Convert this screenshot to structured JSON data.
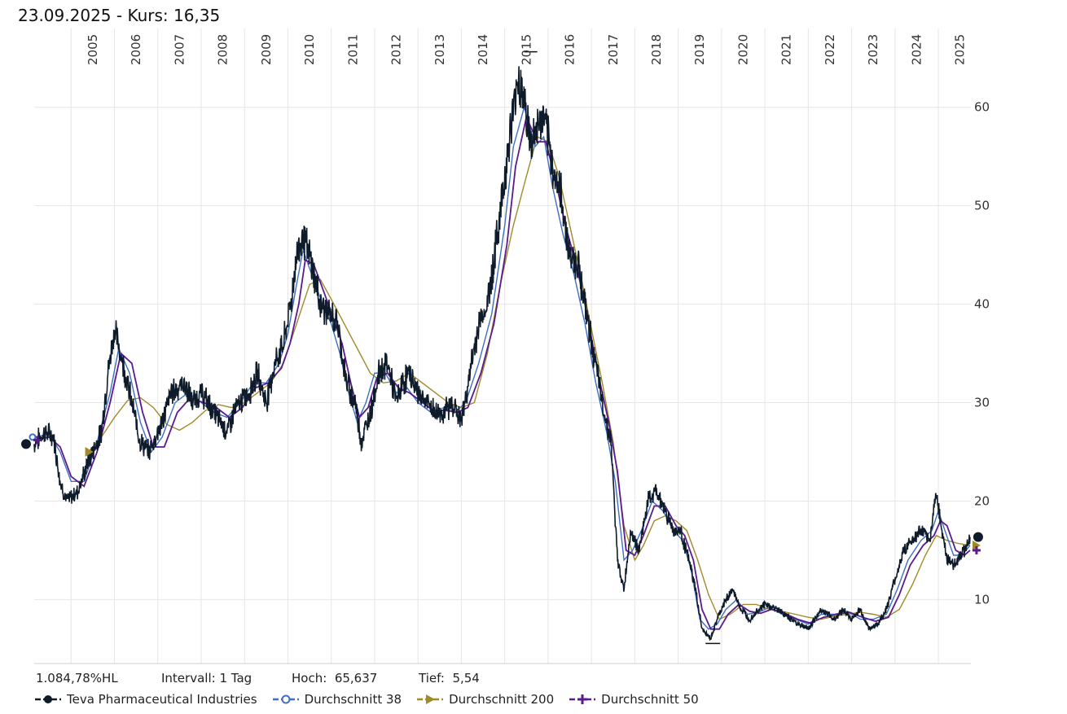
{
  "header": {
    "date": "23.09.2025",
    "separator": " - Kurs: ",
    "price": "16,35"
  },
  "stats": {
    "performance": "1.084,78%HL",
    "interval_label": "Intervall:",
    "interval_value": "1 Tag",
    "high_label": "Hoch:",
    "high_value": "65,637",
    "low_label": "Tief:",
    "low_value": "5,54"
  },
  "legend": [
    {
      "label": "Teva Pharmaceutical Industries",
      "color": "#0d1b2a",
      "marker": "circle"
    },
    {
      "label": "Durchschnitt 38",
      "color": "#3d6fc4",
      "marker": "diamond"
    },
    {
      "label": "Durchschnitt 200",
      "color": "#a08a2a",
      "marker": "triangle"
    },
    {
      "label": "Durchschnitt 50",
      "color": "#5b1a8e",
      "marker": "plus"
    }
  ],
  "chart_data": {
    "type": "line",
    "title": "Teva Pharmaceutical Industries",
    "x_domain": [
      2004.15,
      2025.75
    ],
    "ylim": [
      3.5,
      68
    ],
    "x_ticks": [
      "2005",
      "2006",
      "2007",
      "2008",
      "2009",
      "2010",
      "2011",
      "2012",
      "2013",
      "2014",
      "2015",
      "2016",
      "2017",
      "2018",
      "2019",
      "2020",
      "2021",
      "2022",
      "2023",
      "2024",
      "2025"
    ],
    "y_ticks": [
      10,
      20,
      30,
      40,
      50,
      60
    ],
    "grid": true,
    "annotations": {
      "high": 65.637,
      "low": 5.54,
      "last": 16.35
    },
    "series": [
      {
        "name": "Teva Pharmaceutical Industries",
        "color": "#0d1b2a",
        "x": [
          2004.15,
          2004.4,
          2004.6,
          2004.75,
          2004.9,
          2005.15,
          2005.4,
          2005.7,
          2005.85,
          2006.0,
          2006.2,
          2006.45,
          2006.6,
          2006.8,
          2007.1,
          2007.3,
          2007.6,
          2007.8,
          2008.0,
          2008.3,
          2008.6,
          2008.75,
          2008.9,
          2009.1,
          2009.3,
          2009.5,
          2009.7,
          2009.9,
          2010.1,
          2010.2,
          2010.35,
          2010.55,
          2010.75,
          2010.95,
          2011.15,
          2011.35,
          2011.55,
          2011.7,
          2011.9,
          2012.1,
          2012.3,
          2012.5,
          2012.65,
          2012.8,
          2013.0,
          2013.2,
          2013.4,
          2013.6,
          2013.8,
          2014.0,
          2014.2,
          2014.4,
          2014.6,
          2014.8,
          2015.0,
          2015.15,
          2015.3,
          2015.45,
          2015.6,
          2015.75,
          2015.9,
          2016.1,
          2016.3,
          2016.5,
          2016.7,
          2016.85,
          2017.05,
          2017.25,
          2017.45,
          2017.6,
          2017.75,
          2017.9,
          2018.1,
          2018.3,
          2018.5,
          2018.7,
          2018.9,
          2019.05,
          2019.25,
          2019.4,
          2019.55,
          2019.75,
          2019.9,
          2020.1,
          2020.25,
          2020.45,
          2020.65,
          2020.85,
          2021.0,
          2021.3,
          2021.6,
          2021.8,
          2022.0,
          2022.3,
          2022.6,
          2022.8,
          2023.0,
          2023.2,
          2023.4,
          2023.6,
          2023.8,
          2024.0,
          2024.2,
          2024.4,
          2024.6,
          2024.8,
          2024.95,
          2025.05,
          2025.2,
          2025.35,
          2025.5,
          2025.6,
          2025.73
        ],
        "values": [
          25.8,
          27,
          26.5,
          22,
          20,
          21,
          24,
          27,
          33,
          37.5,
          34,
          29,
          26,
          25,
          28,
          31,
          32,
          30,
          31,
          29,
          27,
          29,
          30,
          31,
          33,
          30,
          34,
          36,
          41,
          45,
          47,
          44,
          40,
          39,
          38,
          32,
          30,
          26,
          29,
          33,
          34,
          30,
          32,
          33,
          31,
          30,
          29,
          29,
          30,
          28,
          33,
          38,
          40,
          46,
          53,
          58,
          63,
          61,
          56,
          58,
          59,
          54,
          51,
          45,
          44,
          40,
          35,
          30,
          26,
          14,
          11,
          17,
          15,
          20,
          21,
          19,
          17,
          17,
          14,
          11,
          7,
          6,
          8,
          10,
          11,
          9,
          8,
          9,
          9.5,
          9,
          8,
          7.5,
          7,
          9,
          8,
          9,
          8,
          9,
          7,
          7.5,
          9,
          12,
          15,
          16,
          17,
          16,
          21,
          18,
          14,
          13.5,
          14.5,
          15,
          16.35
        ]
      },
      {
        "name": "Durchschnitt 38",
        "color": "#3d6fc4",
        "x": [
          2004.15,
          2004.5,
          2004.75,
          2005.0,
          2005.3,
          2005.6,
          2005.9,
          2006.1,
          2006.35,
          2006.6,
          2006.85,
          2007.1,
          2007.4,
          2007.7,
          2008.0,
          2008.3,
          2008.6,
          2008.9,
          2009.2,
          2009.5,
          2009.8,
          2010.0,
          2010.2,
          2010.35,
          2010.55,
          2010.8,
          2011.0,
          2011.2,
          2011.4,
          2011.6,
          2011.8,
          2012.0,
          2012.25,
          2012.5,
          2012.75,
          2013.0,
          2013.3,
          2013.6,
          2013.85,
          2014.1,
          2014.4,
          2014.7,
          2015.0,
          2015.2,
          2015.45,
          2015.7,
          2015.9,
          2016.1,
          2016.35,
          2016.6,
          2016.85,
          2017.1,
          2017.35,
          2017.55,
          2017.75,
          2017.95,
          2018.15,
          2018.4,
          2018.65,
          2018.9,
          2019.1,
          2019.3,
          2019.5,
          2019.7,
          2019.9,
          2020.1,
          2020.35,
          2020.6,
          2020.85,
          2021.1,
          2021.4,
          2021.7,
          2022.0,
          2022.3,
          2022.6,
          2022.9,
          2023.2,
          2023.5,
          2023.8,
          2024.05,
          2024.3,
          2024.6,
          2024.85,
          2025.0,
          2025.15,
          2025.35,
          2025.55,
          2025.73
        ],
        "values": [
          26.5,
          26.8,
          25,
          22,
          22,
          26,
          31,
          35.5,
          33,
          28,
          25,
          26.5,
          30,
          31,
          30,
          29,
          28.5,
          30,
          32,
          32,
          34,
          37,
          42,
          45.5,
          43,
          40,
          38,
          35,
          31,
          28,
          30,
          33,
          33,
          31,
          31.5,
          30,
          29,
          29.5,
          29,
          30,
          34,
          39,
          48,
          56,
          60,
          56,
          57,
          52,
          47,
          43,
          38,
          32,
          27,
          22,
          14,
          15,
          17,
          20,
          19,
          17,
          16,
          13,
          8,
          7,
          7.5,
          9,
          10,
          8.5,
          8.7,
          9.2,
          8.5,
          8,
          7.5,
          8.5,
          8.5,
          8.8,
          8,
          8,
          8.5,
          11,
          14,
          16,
          17,
          19,
          17,
          14.5,
          14.5,
          15.5
        ]
      },
      {
        "name": "Durchschnitt 50",
        "color": "#5b1a8e",
        "x": [
          2004.15,
          2004.5,
          2004.75,
          2005.0,
          2005.3,
          2005.6,
          2005.9,
          2006.15,
          2006.4,
          2006.65,
          2006.9,
          2007.15,
          2007.45,
          2007.75,
          2008.05,
          2008.35,
          2008.65,
          2008.95,
          2009.25,
          2009.55,
          2009.85,
          2010.05,
          2010.25,
          2010.4,
          2010.6,
          2010.85,
          2011.05,
          2011.25,
          2011.45,
          2011.65,
          2011.85,
          2012.05,
          2012.3,
          2012.55,
          2012.8,
          2013.05,
          2013.35,
          2013.65,
          2013.9,
          2014.15,
          2014.45,
          2014.75,
          2015.05,
          2015.25,
          2015.5,
          2015.75,
          2015.95,
          2016.15,
          2016.4,
          2016.65,
          2016.9,
          2017.15,
          2017.4,
          2017.6,
          2017.8,
          2018.0,
          2018.2,
          2018.45,
          2018.7,
          2018.95,
          2019.15,
          2019.35,
          2019.55,
          2019.75,
          2019.95,
          2020.15,
          2020.4,
          2020.65,
          2020.9,
          2021.15,
          2021.45,
          2021.75,
          2022.05,
          2022.35,
          2022.65,
          2022.95,
          2023.25,
          2023.55,
          2023.85,
          2024.1,
          2024.35,
          2024.65,
          2024.9,
          2025.05,
          2025.2,
          2025.4,
          2025.6,
          2025.73
        ],
        "values": [
          26.2,
          26.5,
          25.5,
          22.5,
          21.5,
          25,
          30,
          35,
          34,
          29,
          25.5,
          25.5,
          29,
          30.5,
          30,
          29.5,
          28.5,
          29.5,
          31.5,
          32,
          33.5,
          36,
          40,
          44.5,
          44,
          41,
          38.5,
          36,
          32,
          28.5,
          29.5,
          32.5,
          33,
          31.5,
          31,
          30.2,
          29.2,
          29.2,
          29,
          29.5,
          33,
          38,
          46,
          54,
          59,
          56.5,
          56.5,
          53,
          48,
          44,
          39,
          33,
          28,
          23,
          15,
          14.5,
          16.5,
          19.5,
          19.5,
          17.5,
          16.5,
          14,
          9,
          7,
          7,
          8.5,
          9.5,
          8.8,
          8.6,
          9,
          8.6,
          8,
          7.6,
          8.2,
          8.5,
          8.7,
          8.2,
          7.8,
          8.2,
          10.5,
          13.5,
          15.5,
          16.5,
          18,
          17.5,
          15,
          14.5,
          15
        ]
      },
      {
        "name": "Durchschnitt 200",
        "color": "#a08a2a",
        "x": [
          2005.4,
          2005.7,
          2006.0,
          2006.3,
          2006.6,
          2006.9,
          2007.2,
          2007.5,
          2007.8,
          2008.1,
          2008.4,
          2008.7,
          2009.0,
          2009.3,
          2009.6,
          2009.9,
          2010.2,
          2010.5,
          2010.75,
          2011.0,
          2011.3,
          2011.6,
          2011.9,
          2012.2,
          2012.5,
          2012.8,
          2013.1,
          2013.4,
          2013.7,
          2014.0,
          2014.3,
          2014.6,
          2014.9,
          2015.2,
          2015.5,
          2015.75,
          2016.0,
          2016.25,
          2016.5,
          2016.75,
          2017.0,
          2017.25,
          2017.5,
          2017.75,
          2018.0,
          2018.2,
          2018.45,
          2018.7,
          2018.95,
          2019.2,
          2019.45,
          2019.7,
          2019.95,
          2020.2,
          2020.5,
          2020.8,
          2021.1,
          2021.4,
          2021.7,
          2022.0,
          2022.3,
          2022.6,
          2022.9,
          2023.2,
          2023.5,
          2023.8,
          2024.1,
          2024.4,
          2024.7,
          2024.95,
          2025.2,
          2025.45,
          2025.73
        ],
        "values": [
          25,
          26.5,
          28.5,
          30.2,
          30.5,
          29.5,
          27.8,
          27.2,
          28,
          29.2,
          29.8,
          29.5,
          30,
          31,
          32,
          34,
          38,
          42,
          42.5,
          40.5,
          38,
          35.5,
          33,
          32,
          32.2,
          33,
          32,
          31,
          30,
          29.5,
          30,
          35,
          42,
          48,
          53,
          57,
          56.5,
          53,
          48,
          43,
          37.5,
          32,
          26,
          17.5,
          14,
          15.5,
          18,
          18.5,
          18,
          17,
          14,
          10.5,
          8,
          8.5,
          9.5,
          9.5,
          9,
          8.8,
          8.5,
          8.2,
          8,
          8.3,
          8.5,
          8.7,
          8.5,
          8.2,
          9,
          11.5,
          14.5,
          16.5,
          16,
          15.7,
          15.5
        ]
      }
    ]
  }
}
